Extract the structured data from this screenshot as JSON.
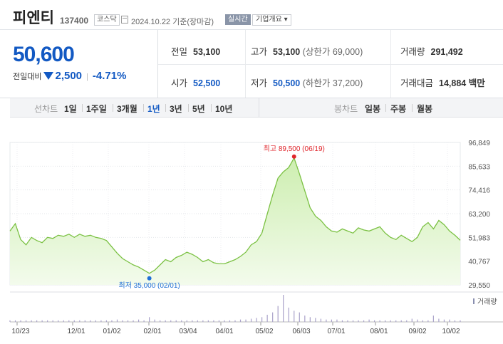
{
  "header": {
    "name": "피엔티",
    "code": "137400",
    "market": "코스닥",
    "date": "2024.10.22",
    "basis": "기준(장마감)",
    "realtime": "실시간",
    "overview": "기업개요 ▾"
  },
  "price": {
    "current": "50,600",
    "change_label": "전일대비",
    "change": "2,500",
    "change_pct": "-4.71%"
  },
  "stats": {
    "prev_label": "전일",
    "prev": "53,100",
    "high_label": "고가",
    "high": "53,100",
    "upper_limit": "(상한가 69,000)",
    "vol_label": "거래량",
    "vol": "291,492",
    "open_label": "시가",
    "open": "52,500",
    "low_label": "저가",
    "low": "50,500",
    "lower_limit": "(하한가 37,200)",
    "amount_label": "거래대금",
    "amount": "14,884",
    "amount_unit": "백만"
  },
  "tabs": {
    "line_label": "선차트",
    "periods": [
      "1일",
      "1주일",
      "3개월",
      "1년",
      "3년",
      "5년",
      "10년"
    ],
    "active_period": "1년",
    "candle_label": "봉차트",
    "candles": [
      "일봉",
      "주봉",
      "월봉"
    ]
  },
  "chart_data": {
    "type": "area",
    "y_ticks": [
      "96,849",
      "85,633",
      "74,416",
      "63,200",
      "51,983",
      "40,767",
      "29,550"
    ],
    "ylim": [
      29550,
      96849
    ],
    "x_ticks": [
      "10/23",
      "12/01",
      "01/02",
      "02/01",
      "03/04",
      "04/01",
      "05/02",
      "06/03",
      "07/01",
      "08/01",
      "09/02",
      "10/02"
    ],
    "high_annotation": "최고 89,500 (06/19)",
    "low_annotation": "최저 35,000 (02/01)",
    "high_value": 89500,
    "low_value": 35000,
    "volume_label": "거래량",
    "colors": {
      "line": "#7bc143",
      "fill_top": "#cdeeb0",
      "fill_bottom": "#f3fbec",
      "high": "#e0262c",
      "low": "#1f6fd6"
    },
    "series": [
      {
        "values": [
          55000,
          58500,
          51000,
          48500,
          52000,
          50500,
          49500,
          52000,
          51500,
          53000,
          52500,
          53500,
          52000,
          53500,
          52500,
          53000,
          52000,
          51500,
          50500,
          47500,
          44500,
          42000,
          40500,
          39000,
          38000,
          36500,
          35000,
          36500,
          39000,
          41500,
          40500,
          42500,
          43500,
          45000,
          44000,
          42500,
          40500,
          41500,
          40000,
          39500,
          39500,
          40500,
          41500,
          43000,
          45000,
          48500,
          50000,
          54000,
          63000,
          72000,
          80000,
          83000,
          85000,
          89500,
          82000,
          74000,
          66000,
          62000,
          60000,
          57000,
          55000,
          54500,
          56000,
          55000,
          54000,
          56500,
          55500,
          55000,
          56000,
          57000,
          54000,
          52000,
          51000,
          53000,
          51500,
          50000,
          52000,
          57000,
          59000,
          56000,
          60000,
          58000,
          55000,
          53000,
          50600
        ]
      }
    ],
    "volume": [
      2,
      2,
      2,
      2,
      2,
      2,
      2,
      2,
      2,
      2,
      2,
      2,
      2,
      2,
      2,
      2,
      2,
      2,
      2,
      2,
      3,
      2,
      2,
      2,
      3,
      2,
      6,
      3,
      2,
      2,
      2,
      2,
      2,
      2,
      2,
      2,
      2,
      2,
      2,
      2,
      2,
      2,
      2,
      3,
      3,
      4,
      5,
      6,
      9,
      12,
      20,
      34,
      18,
      14,
      12,
      8,
      6,
      5,
      4,
      3,
      3,
      3,
      2,
      2,
      2,
      2,
      2,
      3,
      2,
      2,
      2,
      2,
      2,
      2,
      2,
      4,
      3,
      2,
      2,
      8,
      4,
      3,
      3,
      2,
      2
    ]
  }
}
